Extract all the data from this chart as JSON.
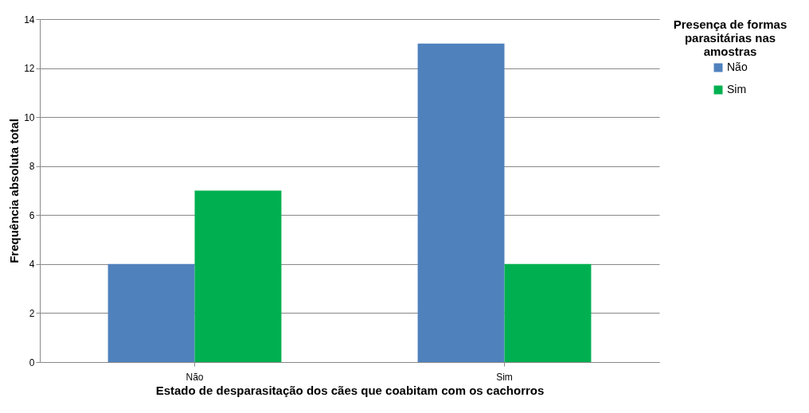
{
  "chart_data": {
    "type": "bar",
    "xlabel": "Estado de desparasitação dos cães que coabitam com os cachorros",
    "ylabel": "Frequência absoluta total",
    "legend_title": "Presença de formas parasitárias nas amostras",
    "categories": [
      "Não",
      "Sim"
    ],
    "series": [
      {
        "name": "Não",
        "color": "#4f81bd",
        "values": [
          4,
          13
        ]
      },
      {
        "name": "Sim",
        "color": "#00b050",
        "values": [
          7,
          4
        ]
      }
    ],
    "ylim": [
      0,
      14
    ],
    "yticks": [
      0,
      2,
      4,
      6,
      8,
      10,
      12,
      14
    ],
    "grid": "y",
    "legend": "right"
  }
}
